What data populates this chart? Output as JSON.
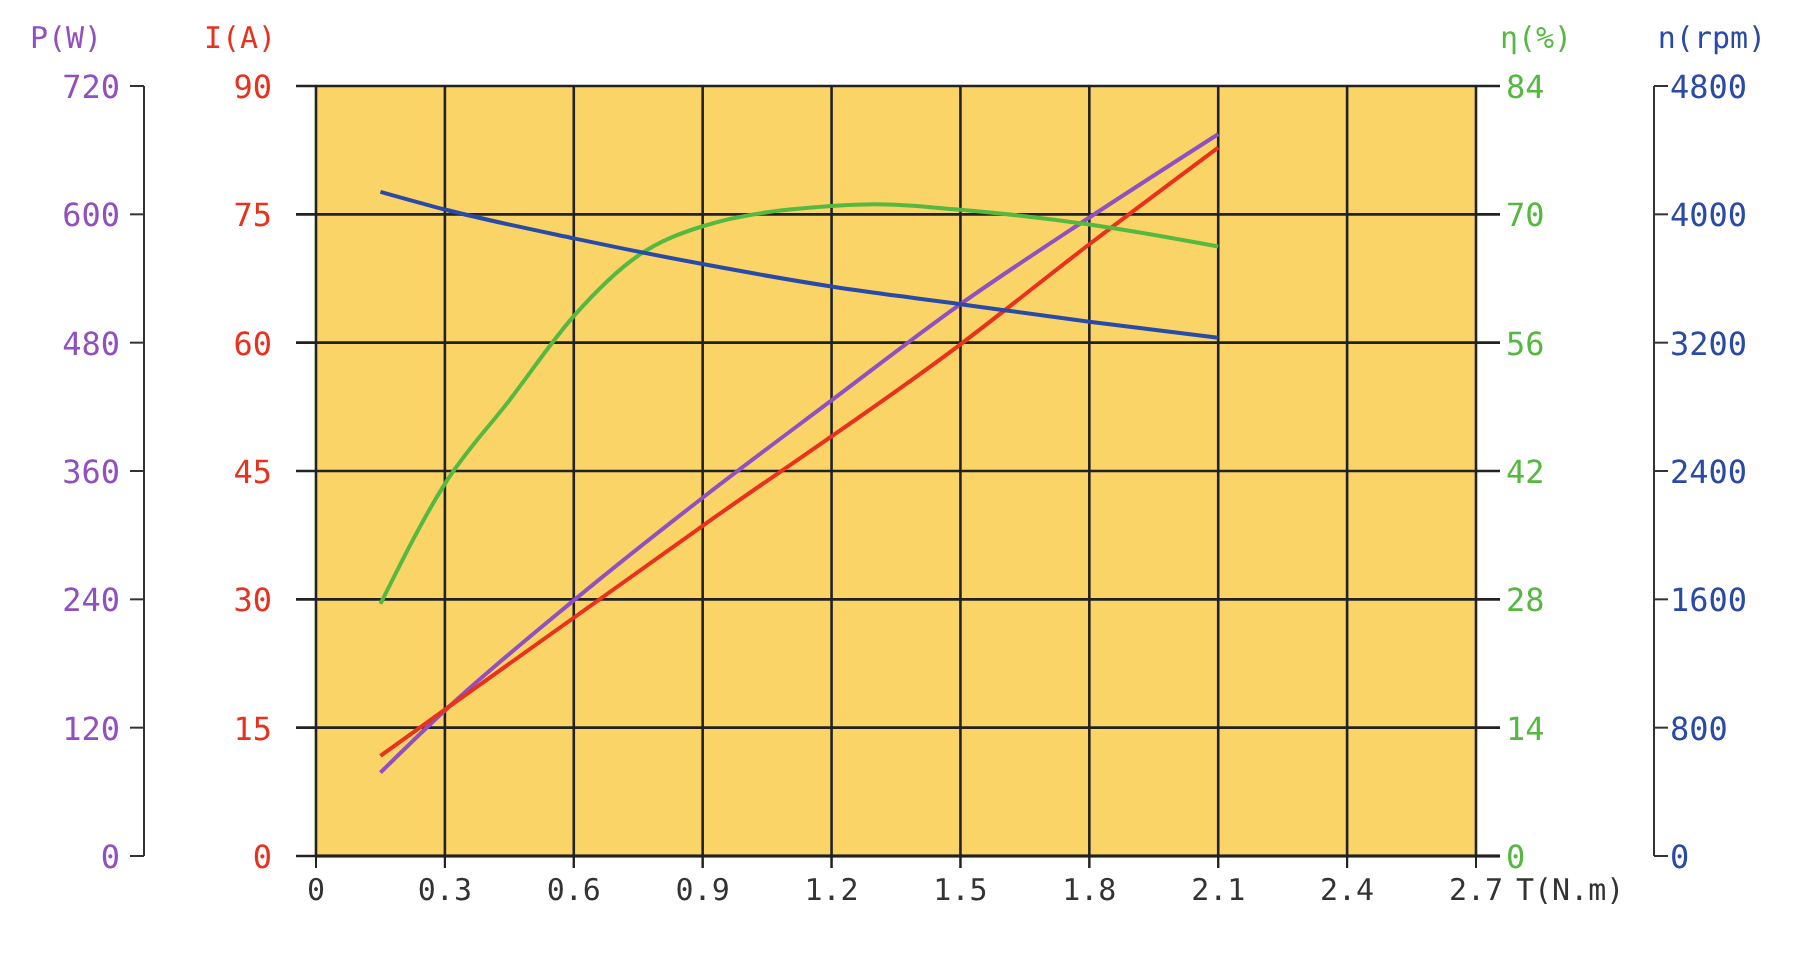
{
  "chart_data": [
    {
      "type": "line",
      "xlabel": "T(N.m)",
      "ylabel": "P(W)",
      "y2label": "I(A)",
      "xlim": [
        0,
        2.7
      ],
      "xticks": [
        0,
        0.3,
        0.6,
        0.9,
        1.2,
        1.5,
        1.8,
        2.1,
        2.4,
        2.7
      ],
      "ylim": [
        0,
        720
      ],
      "yticks": [
        0,
        120,
        240,
        360,
        480,
        600,
        720
      ],
      "y2lim": [
        0,
        90
      ],
      "y2ticks": [
        0,
        15,
        30,
        45,
        60,
        75,
        90
      ],
      "grid": true,
      "marker": "none",
      "line_style": "solid",
      "series": [
        {
          "color": "#9050c0",
          "x": [
            0.15,
            0.3,
            0.6,
            0.9,
            1.2,
            1.5,
            1.8,
            2.1
          ],
          "values": [
            78,
            136,
            239,
            335,
            426,
            516,
            597,
            675
          ]
        },
        {
          "axis": "y2",
          "color": "#e8321e",
          "x": [
            0.15,
            0.3,
            0.9,
            1.5,
            1.8,
            2.1
          ],
          "values": [
            11.7,
            17.1,
            38.6,
            59.8,
            71.5,
            82.8
          ]
        }
      ]
    },
    {
      "type": "line",
      "ylabel": "η(%)",
      "y2label": "n(rpm)",
      "tick_labels": "y",
      "xlim": [
        0,
        2.7
      ],
      "xticks": [
        0,
        0.3,
        0.6,
        0.9,
        1.2,
        1.5,
        1.8,
        2.1,
        2.4,
        2.7
      ],
      "ylim": [
        0,
        84
      ],
      "yticks": [
        0,
        14,
        28,
        42,
        56,
        70,
        84
      ],
      "y2lim": [
        0,
        4800
      ],
      "y2ticks": [
        0,
        800,
        1600,
        2400,
        3200,
        4000,
        4800
      ],
      "marker": "none",
      "line_style": "solid",
      "series": [
        {
          "color": "#55b840",
          "x": [
            0.15,
            0.3,
            0.45,
            0.6,
            0.75,
            0.9,
            1.2,
            1.3,
            1.5,
            1.8,
            2.1
          ],
          "values": [
            27.5,
            40.6,
            49.7,
            58.9,
            65.5,
            68.7,
            70.9,
            71.1,
            70.5,
            68.9,
            66.5
          ]
        },
        {
          "axis": "y2",
          "color": "#2a4aa8",
          "x": [
            0.15,
            0.3,
            0.6,
            0.9,
            1.2,
            1.5,
            1.8,
            2.1
          ],
          "values": [
            4140,
            4030,
            3850,
            3690,
            3550,
            3440,
            3330,
            3230
          ]
        }
      ]
    }
  ]
}
